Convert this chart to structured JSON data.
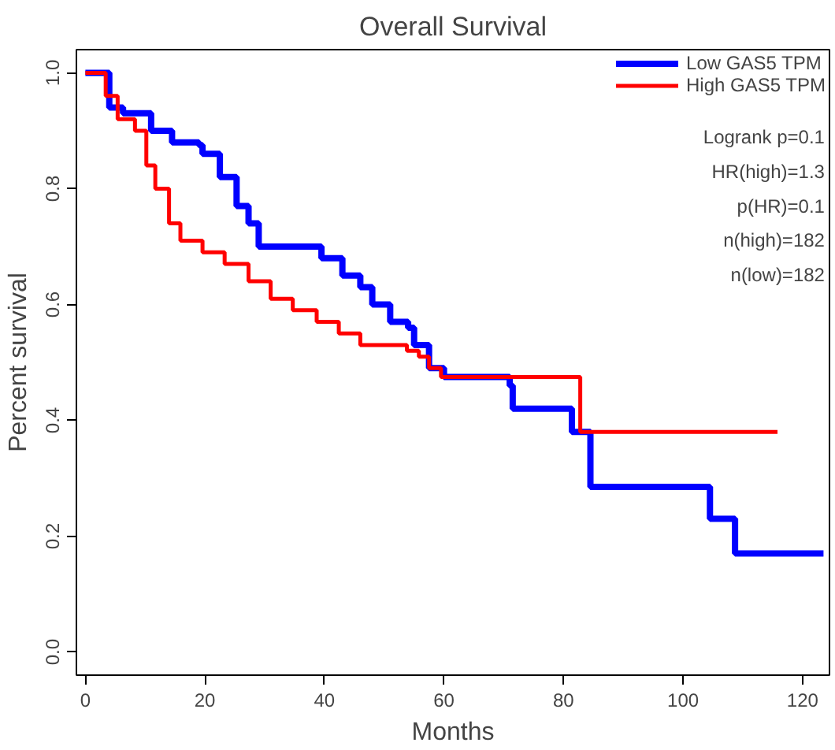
{
  "chart_data": {
    "type": "step",
    "title": "Overall Survival",
    "xlabel": "Months",
    "ylabel": "Percent survival",
    "xlim": [
      -1.5,
      124.5
    ],
    "ylim": [
      -0.04,
      1.04
    ],
    "xticks": [
      0,
      20,
      40,
      60,
      80,
      100,
      120
    ],
    "yticks": [
      {
        "value": 0,
        "label": "0.0"
      },
      {
        "value": 0.2,
        "label": "0.2"
      },
      {
        "value": 0.4,
        "label": "0.4"
      },
      {
        "value": 0.6,
        "label": "0.6"
      },
      {
        "value": 0.8,
        "label": "0.8"
      },
      {
        "value": 1,
        "label": "1.0"
      }
    ],
    "grid": false,
    "legend": "top right",
    "line_style": "solid",
    "series": [
      {
        "name": "Low GAS5 TPM",
        "color": "#0000ff",
        "x": [
          0,
          4,
          6.3,
          11,
          14.5,
          19,
          19.6,
          22.5,
          25.3,
          27.3,
          29,
          39.5,
          43,
          46,
          48,
          51,
          54,
          55,
          57.5,
          60,
          71,
          71.5,
          81.4,
          84.5,
          104.5,
          108.7,
          123.5
        ],
        "values": [
          1.0,
          0.94,
          0.93,
          0.9,
          0.88,
          0.875,
          0.86,
          0.82,
          0.77,
          0.74,
          0.7,
          0.68,
          0.65,
          0.63,
          0.6,
          0.57,
          0.56,
          0.53,
          0.49,
          0.475,
          0.46,
          0.42,
          0.38,
          0.285,
          0.23,
          0.17,
          0.17
        ]
      },
      {
        "name": "High GAS5 TPM",
        "color": "#ff0000",
        "x": [
          0,
          3.4,
          5.4,
          8.3,
          10.2,
          11.7,
          14,
          15.9,
          19.6,
          23.3,
          27.3,
          31,
          34.7,
          38.7,
          42.4,
          46,
          53.8,
          55.8,
          57.5,
          59.5,
          82.8,
          115.8
        ],
        "values": [
          1.0,
          0.96,
          0.92,
          0.9,
          0.84,
          0.8,
          0.74,
          0.71,
          0.69,
          0.67,
          0.64,
          0.61,
          0.59,
          0.57,
          0.55,
          0.53,
          0.52,
          0.51,
          0.49,
          0.475,
          0.38,
          0.38
        ]
      }
    ],
    "annotations": [
      "Logrank p=0.1",
      "HR(high)=1.3",
      "p(HR)=0.1",
      "n(high)=182",
      "n(low)=182"
    ]
  }
}
